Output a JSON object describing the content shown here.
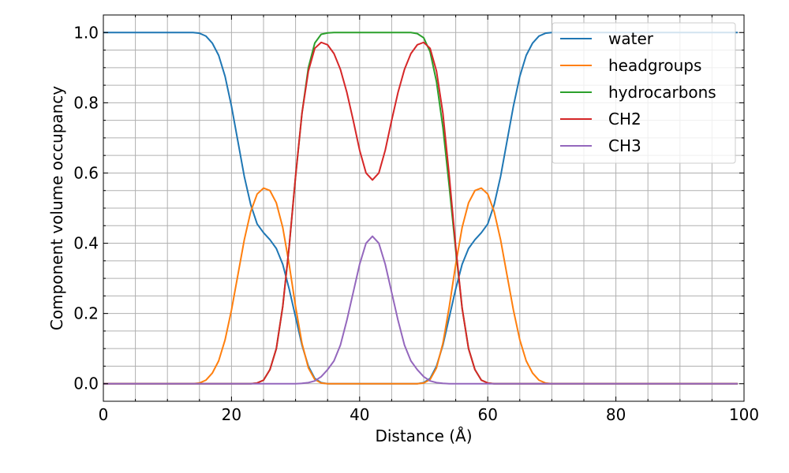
{
  "chart_data": {
    "type": "line",
    "title": "",
    "xlabel": "Distance (Å)",
    "ylabel": "Component volume occupancy",
    "xlim": [
      0,
      100
    ],
    "ylim": [
      -0.05,
      1.05
    ],
    "xticks": [
      0,
      20,
      40,
      60,
      80,
      100
    ],
    "xtick_labels": [
      "0",
      "20",
      "40",
      "60",
      "80",
      "100"
    ],
    "yticks": [
      0.0,
      0.2,
      0.4,
      0.6,
      0.8,
      1.0
    ],
    "ytick_labels": [
      "0.0",
      "0.2",
      "0.4",
      "0.6",
      "0.8",
      "1.0"
    ],
    "grid": "major and minor",
    "legend_position": "top-right",
    "x": [
      0,
      1,
      2,
      3,
      4,
      5,
      6,
      7,
      8,
      9,
      10,
      11,
      12,
      13,
      14,
      15,
      16,
      17,
      18,
      19,
      20,
      21,
      22,
      23,
      24,
      25,
      26,
      27,
      28,
      29,
      30,
      31,
      32,
      33,
      34,
      35,
      36,
      37,
      38,
      39,
      40,
      41,
      42,
      43,
      44,
      45,
      46,
      47,
      48,
      49,
      50,
      51,
      52,
      53,
      54,
      55,
      56,
      57,
      58,
      59,
      60,
      61,
      62,
      63,
      64,
      65,
      66,
      67,
      68,
      69,
      70,
      71,
      72,
      73,
      74,
      75,
      76,
      77,
      78,
      79,
      80,
      81,
      82,
      83,
      84,
      85,
      86,
      87,
      88,
      89,
      90,
      91,
      92,
      93,
      94,
      95,
      96,
      97,
      98,
      99
    ],
    "series": [
      {
        "name": "water",
        "color": "#1f77b4",
        "values": [
          1.0,
          1.0,
          1.0,
          1.0,
          1.0,
          1.0,
          1.0,
          1.0,
          1.0,
          1.0,
          1.0,
          1.0,
          1.0,
          1.0,
          1.0,
          0.998,
          0.99,
          0.97,
          0.935,
          0.875,
          0.79,
          0.69,
          0.59,
          0.51,
          0.455,
          0.43,
          0.41,
          0.385,
          0.34,
          0.27,
          0.19,
          0.11,
          0.05,
          0.015,
          0.003,
          0.0,
          0.0,
          0.0,
          0.0,
          0.0,
          0.0,
          0.0,
          0.0,
          0.0,
          0.0,
          0.0,
          0.0,
          0.0,
          0.0,
          0.0,
          0.003,
          0.015,
          0.05,
          0.11,
          0.19,
          0.27,
          0.34,
          0.385,
          0.41,
          0.43,
          0.455,
          0.51,
          0.59,
          0.69,
          0.79,
          0.875,
          0.935,
          0.97,
          0.99,
          0.998,
          1.0,
          1.0,
          1.0,
          1.0,
          1.0,
          1.0,
          1.0,
          1.0,
          1.0,
          1.0,
          1.0,
          1.0,
          1.0,
          1.0,
          1.0,
          1.0,
          1.0,
          1.0,
          1.0,
          1.0,
          1.0,
          1.0,
          1.0,
          1.0,
          1.0,
          1.0,
          1.0,
          1.0,
          1.0,
          1.0
        ]
      },
      {
        "name": "headgroups",
        "color": "#ff7f0e",
        "values": [
          0.0,
          0.0,
          0.0,
          0.0,
          0.0,
          0.0,
          0.0,
          0.0,
          0.0,
          0.0,
          0.0,
          0.0,
          0.0,
          0.0,
          0.0,
          0.002,
          0.01,
          0.03,
          0.065,
          0.125,
          0.21,
          0.31,
          0.41,
          0.49,
          0.54,
          0.557,
          0.55,
          0.515,
          0.445,
          0.34,
          0.22,
          0.115,
          0.045,
          0.012,
          0.002,
          0.0,
          0.0,
          0.0,
          0.0,
          0.0,
          0.0,
          0.0,
          0.0,
          0.0,
          0.0,
          0.0,
          0.0,
          0.0,
          0.0,
          0.0,
          0.002,
          0.012,
          0.045,
          0.115,
          0.22,
          0.34,
          0.445,
          0.515,
          0.55,
          0.557,
          0.54,
          0.49,
          0.41,
          0.31,
          0.21,
          0.125,
          0.065,
          0.03,
          0.01,
          0.002,
          0.0,
          0.0,
          0.0,
          0.0,
          0.0,
          0.0,
          0.0,
          0.0,
          0.0,
          0.0,
          0.0,
          0.0,
          0.0,
          0.0,
          0.0,
          0.0,
          0.0,
          0.0,
          0.0,
          0.0,
          0.0,
          0.0,
          0.0,
          0.0,
          0.0,
          0.0,
          0.0,
          0.0,
          0.0,
          0.0
        ]
      },
      {
        "name": "hydrocarbons",
        "color": "#2ca02c",
        "values": [
          0.0,
          0.0,
          0.0,
          0.0,
          0.0,
          0.0,
          0.0,
          0.0,
          0.0,
          0.0,
          0.0,
          0.0,
          0.0,
          0.0,
          0.0,
          0.0,
          0.0,
          0.0,
          0.0,
          0.0,
          0.0,
          0.0,
          0.0,
          0.0,
          0.002,
          0.01,
          0.04,
          0.1,
          0.22,
          0.39,
          0.59,
          0.77,
          0.9,
          0.97,
          0.995,
          0.999,
          1.0,
          1.0,
          1.0,
          1.0,
          1.0,
          1.0,
          1.0,
          1.0,
          1.0,
          1.0,
          1.0,
          1.0,
          1.0,
          0.997,
          0.985,
          0.945,
          0.86,
          0.73,
          0.56,
          0.38,
          0.215,
          0.1,
          0.04,
          0.01,
          0.002,
          0.0,
          0.0,
          0.0,
          0.0,
          0.0,
          0.0,
          0.0,
          0.0,
          0.0,
          0.0,
          0.0,
          0.0,
          0.0,
          0.0,
          0.0,
          0.0,
          0.0,
          0.0,
          0.0,
          0.0,
          0.0,
          0.0,
          0.0,
          0.0,
          0.0,
          0.0,
          0.0,
          0.0,
          0.0,
          0.0,
          0.0,
          0.0,
          0.0,
          0.0,
          0.0,
          0.0,
          0.0,
          0.0,
          0.0
        ]
      },
      {
        "name": "CH2",
        "color": "#d62728",
        "values": [
          0.0,
          0.0,
          0.0,
          0.0,
          0.0,
          0.0,
          0.0,
          0.0,
          0.0,
          0.0,
          0.0,
          0.0,
          0.0,
          0.0,
          0.0,
          0.0,
          0.0,
          0.0,
          0.0,
          0.0,
          0.0,
          0.0,
          0.0,
          0.0,
          0.002,
          0.01,
          0.04,
          0.1,
          0.22,
          0.39,
          0.59,
          0.77,
          0.89,
          0.955,
          0.972,
          0.965,
          0.94,
          0.895,
          0.83,
          0.75,
          0.665,
          0.6,
          0.58,
          0.6,
          0.665,
          0.75,
          0.83,
          0.895,
          0.94,
          0.965,
          0.972,
          0.955,
          0.89,
          0.77,
          0.59,
          0.39,
          0.215,
          0.1,
          0.04,
          0.01,
          0.002,
          0.0,
          0.0,
          0.0,
          0.0,
          0.0,
          0.0,
          0.0,
          0.0,
          0.0,
          0.0,
          0.0,
          0.0,
          0.0,
          0.0,
          0.0,
          0.0,
          0.0,
          0.0,
          0.0,
          0.0,
          0.0,
          0.0,
          0.0,
          0.0,
          0.0,
          0.0,
          0.0,
          0.0,
          0.0,
          0.0,
          0.0,
          0.0,
          0.0,
          0.0,
          0.0,
          0.0,
          0.0,
          0.0,
          0.0
        ]
      },
      {
        "name": "CH3",
        "color": "#9467bd",
        "values": [
          0.0,
          0.0,
          0.0,
          0.0,
          0.0,
          0.0,
          0.0,
          0.0,
          0.0,
          0.0,
          0.0,
          0.0,
          0.0,
          0.0,
          0.0,
          0.0,
          0.0,
          0.0,
          0.0,
          0.0,
          0.0,
          0.0,
          0.0,
          0.0,
          0.0,
          0.0,
          0.0,
          0.0,
          0.0,
          0.0,
          0.0,
          0.001,
          0.003,
          0.008,
          0.02,
          0.04,
          0.065,
          0.11,
          0.18,
          0.26,
          0.34,
          0.4,
          0.42,
          0.4,
          0.34,
          0.26,
          0.18,
          0.11,
          0.065,
          0.04,
          0.02,
          0.008,
          0.003,
          0.001,
          0.0,
          0.0,
          0.0,
          0.0,
          0.0,
          0.0,
          0.0,
          0.0,
          0.0,
          0.0,
          0.0,
          0.0,
          0.0,
          0.0,
          0.0,
          0.0,
          0.0,
          0.0,
          0.0,
          0.0,
          0.0,
          0.0,
          0.0,
          0.0,
          0.0,
          0.0,
          0.0,
          0.0,
          0.0,
          0.0,
          0.0,
          0.0,
          0.0,
          0.0,
          0.0,
          0.0,
          0.0,
          0.0,
          0.0,
          0.0,
          0.0,
          0.0,
          0.0,
          0.0,
          0.0,
          0.0
        ]
      }
    ]
  }
}
